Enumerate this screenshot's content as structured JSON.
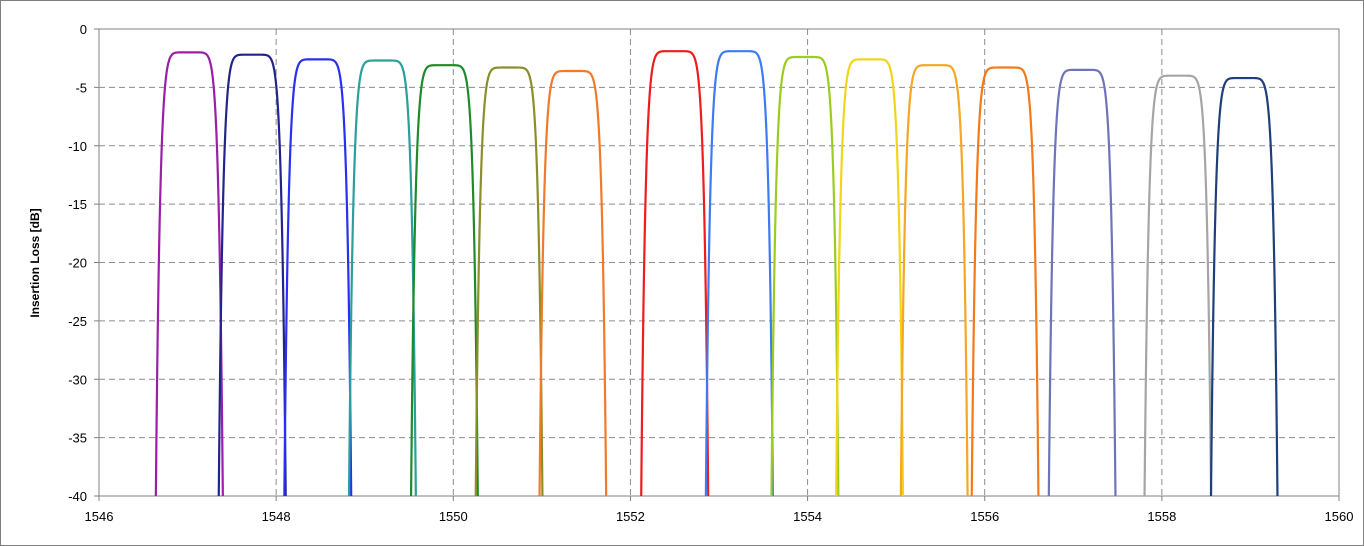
{
  "chart_data": {
    "type": "line",
    "title": "",
    "xlabel": "",
    "ylabel": "Insertion Loss [dB]",
    "xlim": [
      1546,
      1560
    ],
    "ylim": [
      -40,
      0
    ],
    "x_ticks": [
      1546,
      1548,
      1550,
      1552,
      1554,
      1556,
      1558,
      1560
    ],
    "y_ticks": [
      0,
      -5,
      -10,
      -15,
      -20,
      -25,
      -30,
      -35,
      -40
    ],
    "grid": "dashed",
    "legend": "none",
    "series": [
      {
        "color": "#9b1fa6",
        "center": 1547.02,
        "peak": -2.0
      },
      {
        "color": "#23248a",
        "center": 1547.73,
        "peak": -2.2
      },
      {
        "color": "#2a2ff0",
        "center": 1548.47,
        "peak": -2.6
      },
      {
        "color": "#2a9f9b",
        "center": 1549.2,
        "peak": -2.7
      },
      {
        "color": "#1f8a2a",
        "center": 1549.9,
        "peak": -3.1
      },
      {
        "color": "#8a8f2a",
        "center": 1550.63,
        "peak": -3.3
      },
      {
        "color": "#f07a2a",
        "center": 1551.35,
        "peak": -3.6
      },
      {
        "color": "#ee1c1c",
        "center": 1552.5,
        "peak": -1.9
      },
      {
        "color": "#3d7bf2",
        "center": 1553.23,
        "peak": -1.9
      },
      {
        "color": "#9ccc1f",
        "center": 1553.97,
        "peak": -2.4
      },
      {
        "color": "#f2d51a",
        "center": 1554.7,
        "peak": -2.6
      },
      {
        "color": "#f5a623",
        "center": 1555.43,
        "peak": -3.1
      },
      {
        "color": "#f27a1a",
        "center": 1556.23,
        "peak": -3.3
      },
      {
        "color": "#6f74b8",
        "center": 1557.1,
        "peak": -3.5
      },
      {
        "color": "#a5a5a5",
        "center": 1558.18,
        "peak": -4.0
      },
      {
        "color": "#1f3f7a",
        "center": 1558.93,
        "peak": -4.2
      }
    ]
  }
}
